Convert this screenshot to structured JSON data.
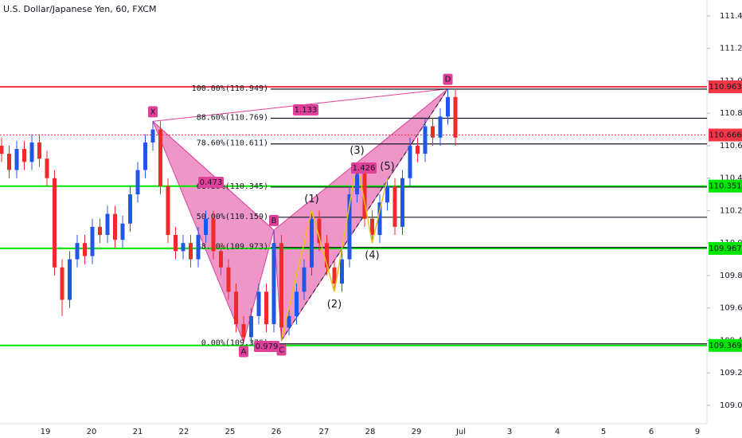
{
  "chart_data": {
    "type": "candlestick",
    "title": "U.S. Dollar/Japanese Yen, 60, FXCM",
    "up_color": "#2157e6",
    "down_color": "#ef2a2a",
    "candles": {
      "open": [
        110.6,
        110.55,
        110.45,
        110.58,
        110.5,
        110.62,
        110.52,
        110.4,
        109.85,
        109.65,
        109.9,
        110.0,
        109.92,
        110.1,
        110.05,
        110.18,
        110.02,
        110.12,
        110.3,
        110.45,
        110.62,
        110.7,
        110.35,
        110.05,
        109.95,
        110.0,
        109.9,
        110.05,
        110.15,
        109.95,
        109.85,
        109.7,
        109.5,
        109.42,
        109.55,
        109.7,
        109.5,
        110.0,
        109.48,
        109.55,
        109.7,
        109.85,
        110.15,
        110.0,
        109.85,
        109.75,
        109.9,
        110.3,
        110.45,
        110.15,
        110.05,
        110.25,
        110.35,
        110.1,
        110.4,
        110.6,
        110.55,
        110.72,
        110.65,
        110.78,
        110.9
      ],
      "high": [
        110.65,
        110.6,
        110.63,
        110.63,
        110.67,
        110.67,
        110.57,
        110.45,
        109.9,
        109.95,
        110.05,
        110.05,
        110.15,
        110.15,
        110.23,
        110.23,
        110.17,
        110.35,
        110.5,
        110.67,
        110.75,
        110.75,
        110.4,
        110.1,
        110.05,
        110.05,
        110.1,
        110.2,
        110.2,
        110.0,
        109.9,
        109.75,
        109.55,
        109.6,
        109.75,
        109.75,
        110.08,
        110.05,
        109.6,
        109.75,
        109.9,
        110.2,
        110.2,
        110.05,
        109.9,
        109.95,
        110.35,
        110.5,
        110.5,
        110.2,
        110.3,
        110.4,
        110.4,
        110.45,
        110.65,
        110.65,
        110.77,
        110.77,
        110.83,
        110.95,
        110.95
      ],
      "low": [
        110.5,
        110.4,
        110.4,
        110.45,
        110.45,
        110.47,
        110.35,
        109.8,
        109.55,
        109.6,
        109.85,
        109.87,
        109.87,
        110.0,
        110.0,
        109.97,
        109.97,
        110.07,
        110.25,
        110.4,
        110.57,
        110.3,
        110.0,
        109.9,
        109.9,
        109.85,
        109.85,
        110.0,
        109.9,
        109.8,
        109.65,
        109.45,
        109.39,
        109.37,
        109.5,
        109.45,
        109.45,
        109.4,
        109.43,
        109.5,
        109.65,
        109.8,
        109.95,
        109.8,
        109.7,
        109.7,
        109.85,
        110.25,
        110.1,
        110.0,
        110.0,
        110.2,
        110.05,
        110.05,
        110.35,
        110.5,
        110.5,
        110.6,
        110.6,
        110.73,
        110.6
      ],
      "close": [
        110.55,
        110.45,
        110.58,
        110.5,
        110.62,
        110.52,
        110.4,
        109.85,
        109.65,
        109.9,
        110.0,
        109.92,
        110.1,
        110.05,
        110.18,
        110.02,
        110.12,
        110.3,
        110.45,
        110.62,
        110.7,
        110.35,
        110.05,
        109.95,
        110.0,
        109.9,
        110.05,
        110.15,
        109.95,
        109.85,
        109.7,
        109.5,
        109.42,
        109.55,
        109.7,
        109.5,
        110.0,
        109.48,
        109.55,
        109.7,
        109.85,
        110.15,
        110.0,
        109.85,
        109.75,
        109.9,
        110.3,
        110.45,
        110.15,
        110.05,
        110.25,
        110.35,
        110.1,
        110.4,
        110.6,
        110.55,
        110.72,
        110.65,
        110.78,
        110.9,
        110.65
      ]
    },
    "ylim": [
      108.91,
      111.47
    ],
    "yticks": [
      {
        "value": 109.0,
        "label": "109.000"
      },
      {
        "value": 109.2,
        "label": "109.200"
      },
      {
        "value": 109.4,
        "label": "109.400"
      },
      {
        "value": 109.6,
        "label": "109.600"
      },
      {
        "value": 109.8,
        "label": "109.800"
      },
      {
        "value": 110.0,
        "label": "110.000"
      },
      {
        "value": 110.2,
        "label": "110.200"
      },
      {
        "value": 110.4,
        "label": "110.400"
      },
      {
        "value": 110.6,
        "label": "110.600"
      },
      {
        "value": 110.8,
        "label": "110.800"
      },
      {
        "value": 111.0,
        "label": "111.000"
      },
      {
        "value": 111.2,
        "label": "111.200"
      },
      {
        "value": 111.4,
        "label": "111.400"
      }
    ],
    "x_labels": [
      "19",
      "20",
      "21",
      "22",
      "25",
      "26",
      "27",
      "28",
      "29",
      "Jul",
      "3",
      "4",
      "5",
      "6",
      "9"
    ],
    "price_lines": [
      {
        "value": 110.963,
        "color": "#f23645",
        "dashed": false
      },
      {
        "value": 110.666,
        "color": "#f23645",
        "dashed": true
      },
      {
        "value": 110.351,
        "color": "#00e600",
        "dashed": false
      },
      {
        "value": 109.967,
        "color": "#00e600",
        "dashed": false
      },
      {
        "value": 109.369,
        "color": "#00e600",
        "dashed": false
      }
    ],
    "fib_levels": [
      {
        "label": "100.00%(110.949)",
        "value": 110.949
      },
      {
        "label": "88.60%(110.769)",
        "value": 110.769
      },
      {
        "label": "78.60%(110.611)",
        "value": 110.611
      },
      {
        "label": "61.80%(110.345)",
        "value": 110.345
      },
      {
        "label": "50.00%(110.159)",
        "value": 110.159
      },
      {
        "label": "38.20%(109.973)",
        "value": 109.973
      },
      {
        "label": "0.00%(109.379)",
        "value": 109.379
      }
    ],
    "harmonic": {
      "color": "#e0409a",
      "points": [
        {
          "name": "X",
          "bar": 20,
          "price": 110.75
        },
        {
          "name": "A",
          "bar": 32,
          "price": 109.39
        },
        {
          "name": "B",
          "bar": 36,
          "price": 110.08
        },
        {
          "name": "C",
          "bar": 37,
          "price": 109.4
        },
        {
          "name": "D",
          "bar": 59,
          "price": 110.95
        }
      ],
      "ratios": [
        1.133,
        0.473,
        0.979,
        1.426
      ]
    },
    "waves": [
      {
        "label": "(1)",
        "bar": 41,
        "price": 110.2
      },
      {
        "label": "(2)",
        "bar": 44,
        "price": 109.7
      },
      {
        "label": "(3)",
        "bar": 47,
        "price": 110.5
      },
      {
        "label": "(4)",
        "bar": 49,
        "price": 110.0
      },
      {
        "label": "(5)",
        "bar": 51,
        "price": 110.4
      }
    ]
  }
}
